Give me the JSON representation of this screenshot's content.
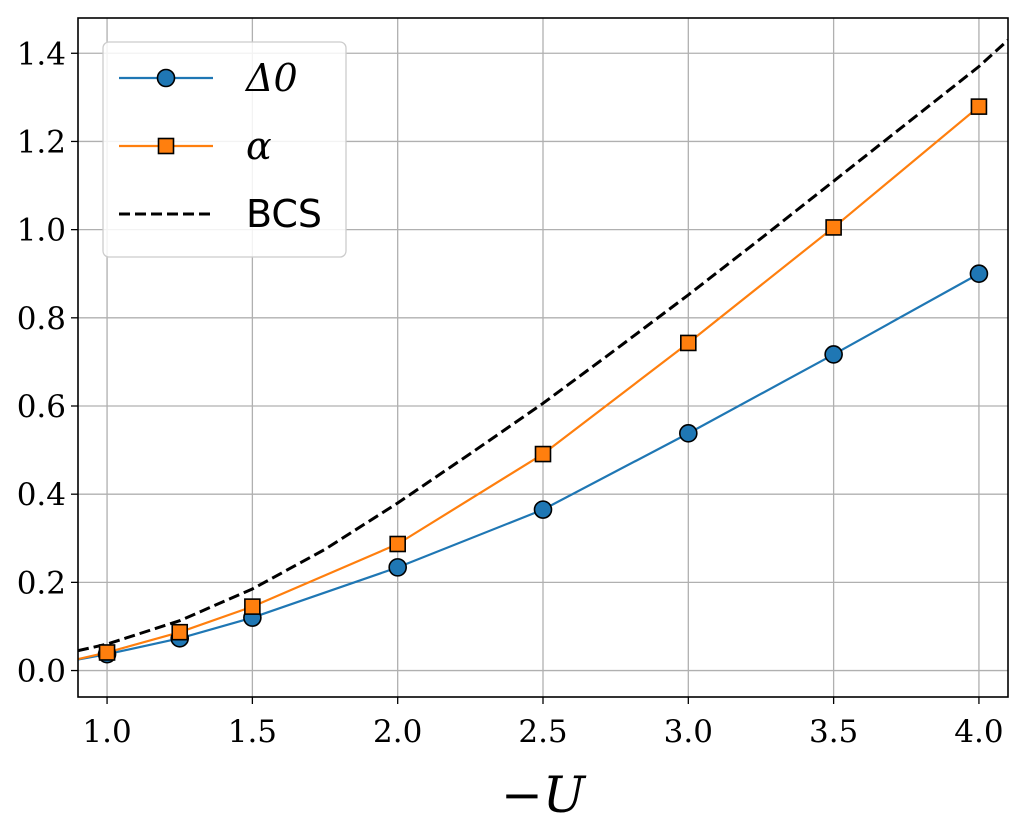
{
  "chart_data": {
    "type": "line",
    "xlabel": "−U",
    "x_ticks": [
      "1.0",
      "1.5",
      "2.0",
      "2.5",
      "3.0",
      "3.5",
      "4.0"
    ],
    "y_ticks": [
      "0.0",
      "0.2",
      "0.4",
      "0.6",
      "0.8",
      "1.0",
      "1.2",
      "1.4"
    ],
    "xlim": [
      0.9,
      4.1
    ],
    "ylim": [
      -0.06,
      1.48
    ],
    "grid": true,
    "legend_position": "top-left",
    "series": [
      {
        "name": "Δ0",
        "color": "#1f77b4",
        "marker": "circle",
        "x": [
          0.9,
          1.0,
          1.25,
          1.5,
          2.0,
          2.5,
          3.0,
          3.5,
          4.0
        ],
        "y": [
          0.025,
          0.037,
          0.073,
          0.12,
          0.234,
          0.365,
          0.538,
          0.717,
          0.9
        ],
        "marked_x": [
          1.0,
          1.25,
          1.5,
          2.0,
          2.5,
          3.0,
          3.5,
          4.0
        ]
      },
      {
        "name": "α",
        "color": "#ff7f0e",
        "marker": "square",
        "x": [
          0.9,
          1.0,
          1.25,
          1.5,
          2.0,
          2.5,
          3.0,
          3.5,
          4.0
        ],
        "y": [
          0.026,
          0.041,
          0.087,
          0.145,
          0.287,
          0.491,
          0.743,
          1.005,
          1.279
        ],
        "marked_x": [
          1.0,
          1.25,
          1.5,
          2.0,
          2.5,
          3.0,
          3.5,
          4.0
        ]
      },
      {
        "name": "BCS",
        "color": "#000000",
        "style": "dashed",
        "x": [
          0.9,
          1.0,
          1.25,
          1.5,
          1.75,
          2.0,
          2.25,
          2.5,
          2.75,
          3.0,
          3.25,
          3.5,
          3.75,
          4.0,
          4.1
        ],
        "y": [
          0.045,
          0.06,
          0.113,
          0.185,
          0.275,
          0.38,
          0.492,
          0.606,
          0.728,
          0.852,
          0.98,
          1.11,
          1.24,
          1.37,
          1.43
        ]
      }
    ]
  }
}
